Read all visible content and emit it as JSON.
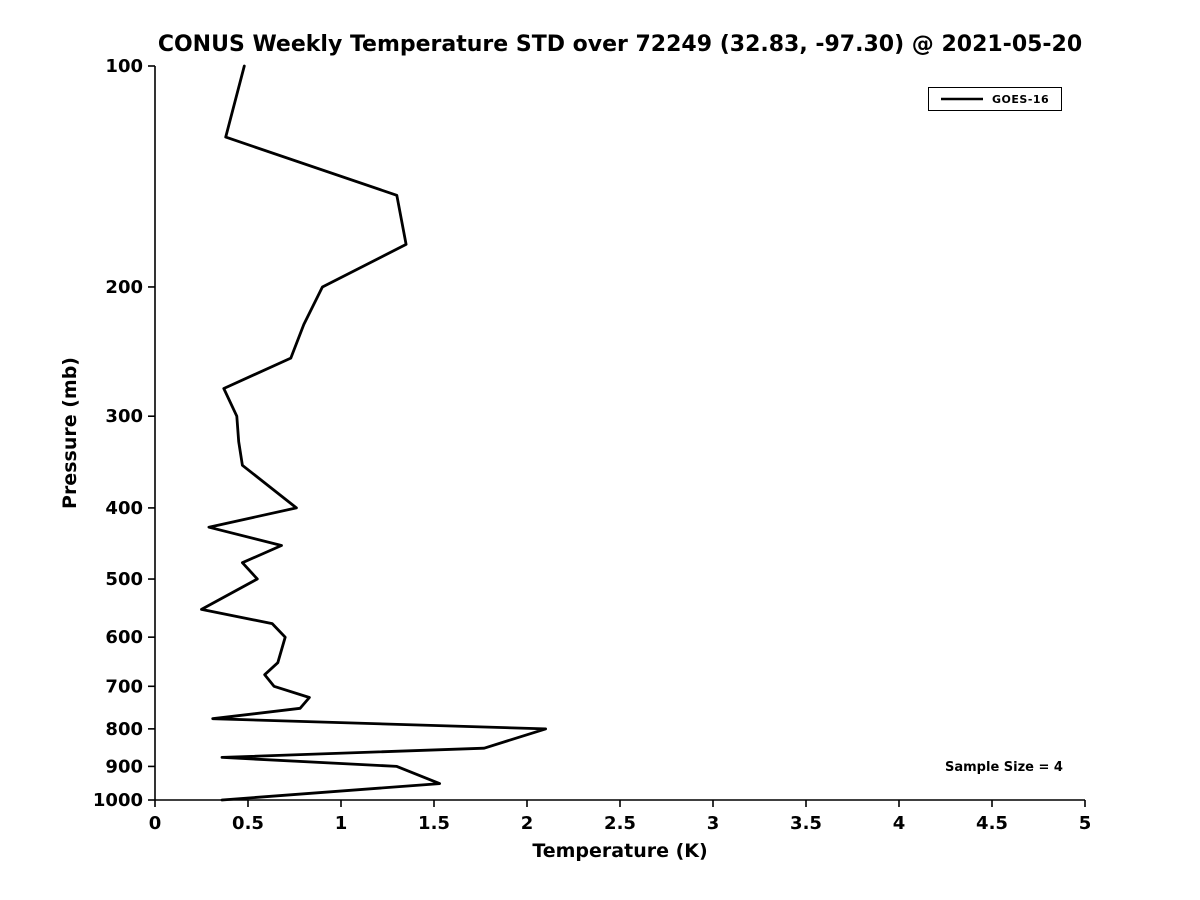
{
  "chart_data": {
    "type": "line",
    "title": "CONUS Weekly Temperature STD over 72249 (32.83, -97.30) @ 2021-05-20",
    "xlabel": "Temperature (K)",
    "ylabel": "Pressure (mb)",
    "xlim": [
      0,
      5
    ],
    "xticks": [
      0,
      0.5,
      1,
      1.5,
      2,
      2.5,
      3,
      3.5,
      4,
      4.5,
      5
    ],
    "yscale": "log",
    "ylim": [
      100,
      1000
    ],
    "y_axis_inverted": true,
    "yticks": [
      100,
      200,
      300,
      400,
      500,
      600,
      700,
      800,
      900,
      1000
    ],
    "grid": false,
    "legend_position": "top-right",
    "annotation": "Sample Size = 4",
    "line_color": "#000000",
    "series": [
      {
        "name": "GOES-16",
        "color": "#000000",
        "pressure_mb": [
          100,
          125,
          150,
          175,
          200,
          225,
          250,
          275,
          300,
          325,
          350,
          400,
          425,
          450,
          475,
          500,
          550,
          575,
          600,
          650,
          675,
          700,
          725,
          750,
          775,
          800,
          850,
          875,
          900,
          950,
          1000
        ],
        "std_K": [
          0.48,
          0.38,
          1.3,
          1.35,
          0.9,
          0.8,
          0.73,
          0.37,
          0.44,
          0.45,
          0.47,
          0.76,
          0.29,
          0.68,
          0.47,
          0.55,
          0.25,
          0.63,
          0.7,
          0.66,
          0.59,
          0.64,
          0.83,
          0.78,
          0.31,
          2.1,
          1.77,
          0.36,
          1.3,
          1.53,
          0.36
        ]
      }
    ]
  }
}
